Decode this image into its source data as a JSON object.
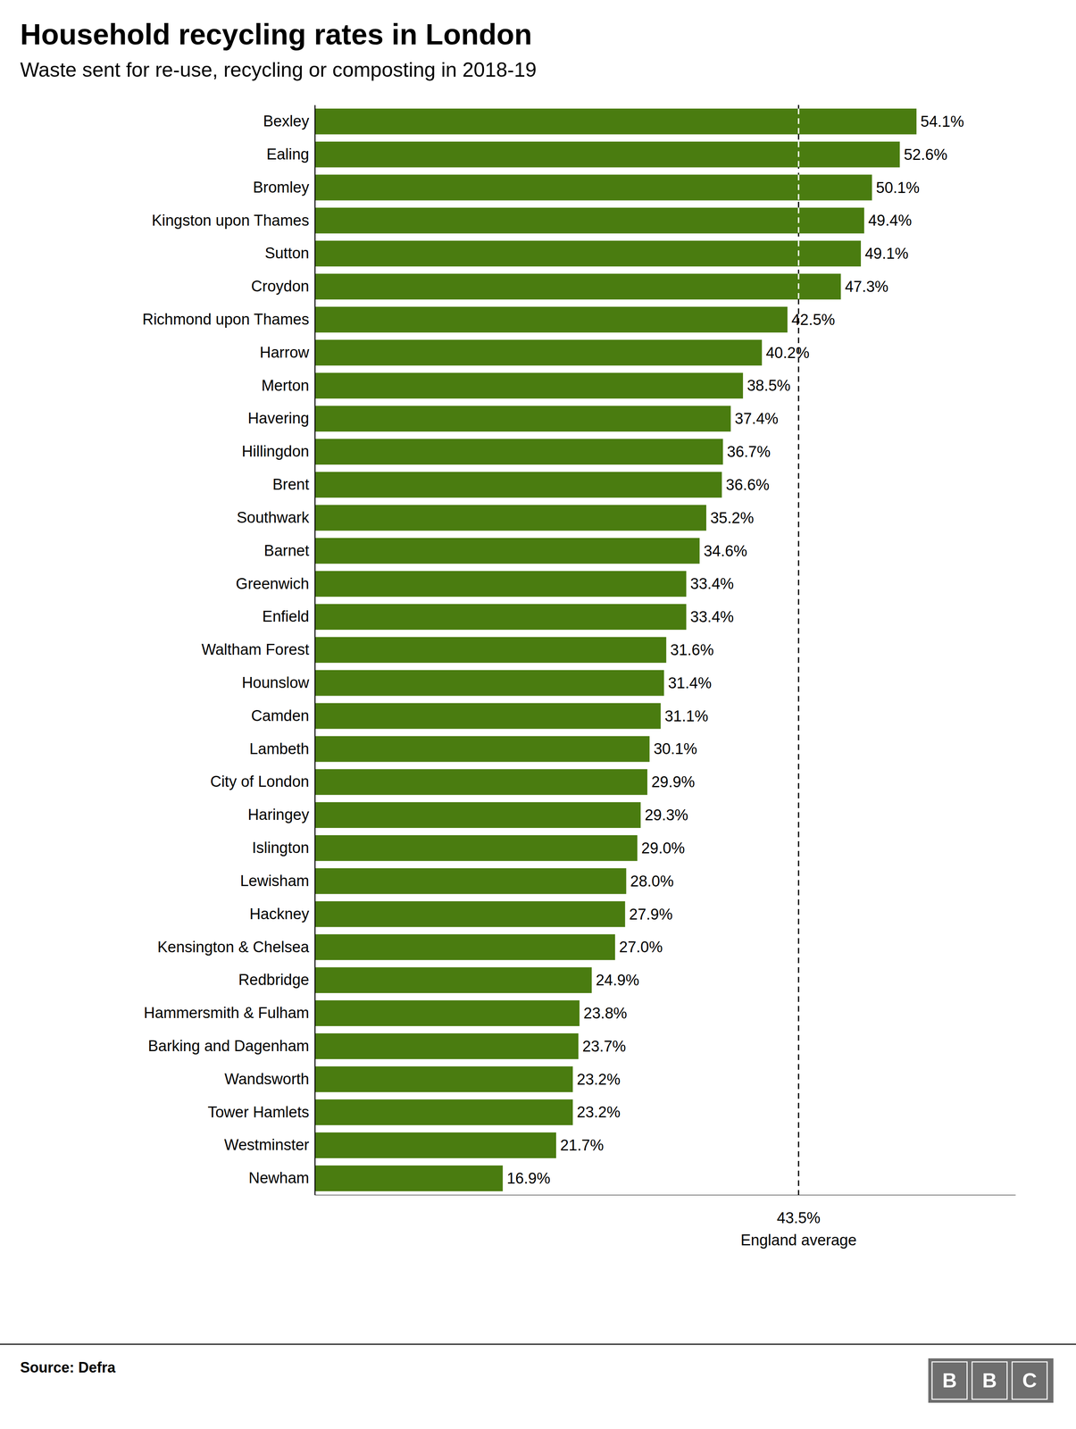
{
  "chart_data": {
    "type": "bar",
    "orientation": "horizontal",
    "title": "Household recycling rates in London",
    "subtitle": "Waste sent for re-use, recycling or composting in 2018-19",
    "source": "Source: Defra",
    "logo": [
      "B",
      "B",
      "C"
    ],
    "categories": [
      "Bexley",
      "Ealing",
      "Bromley",
      "Kingston upon Thames",
      "Sutton",
      "Croydon",
      "Richmond upon Thames",
      "Harrow",
      "Merton",
      "Havering",
      "Hillingdon",
      "Brent",
      "Southwark",
      "Barnet",
      "Greenwich",
      "Enfield",
      "Waltham Forest",
      "Hounslow",
      "Camden",
      "Lambeth",
      "City of London",
      "Haringey",
      "Islington",
      "Lewisham",
      "Hackney",
      "Kensington & Chelsea",
      "Redbridge",
      "Hammersmith & Fulham",
      "Barking and Dagenham",
      "Wandsworth",
      "Tower Hamlets",
      "Westminster",
      "Newham"
    ],
    "values": [
      54.1,
      52.6,
      50.1,
      49.4,
      49.1,
      47.3,
      42.5,
      40.2,
      38.5,
      37.4,
      36.7,
      36.6,
      35.2,
      34.6,
      33.4,
      33.4,
      31.6,
      31.4,
      31.1,
      30.1,
      29.9,
      29.3,
      29.0,
      28.0,
      27.9,
      27.0,
      24.9,
      23.8,
      23.7,
      23.2,
      23.2,
      21.7,
      16.9
    ],
    "value_labels": [
      "54.1%",
      "52.6%",
      "50.1%",
      "49.4%",
      "49.1%",
      "47.3%",
      "42.5%",
      "40.2%",
      "38.5%",
      "37.4%",
      "36.7%",
      "36.6%",
      "35.2%",
      "34.6%",
      "33.4%",
      "33.4%",
      "31.6%",
      "31.4%",
      "31.1%",
      "30.1%",
      "29.9%",
      "29.3%",
      "29.0%",
      "28.0%",
      "27.9%",
      "27.0%",
      "24.9%",
      "23.8%",
      "23.7%",
      "23.2%",
      "23.2%",
      "21.7%",
      "16.9%"
    ],
    "data_labels": true,
    "color": "#4a7c10",
    "xlim": [
      0,
      63
    ],
    "xticks": [],
    "tick_labels": "y",
    "grid": false,
    "reference_line": {
      "value": 43.5,
      "labels": [
        "43.5%",
        "England average"
      ]
    }
  }
}
